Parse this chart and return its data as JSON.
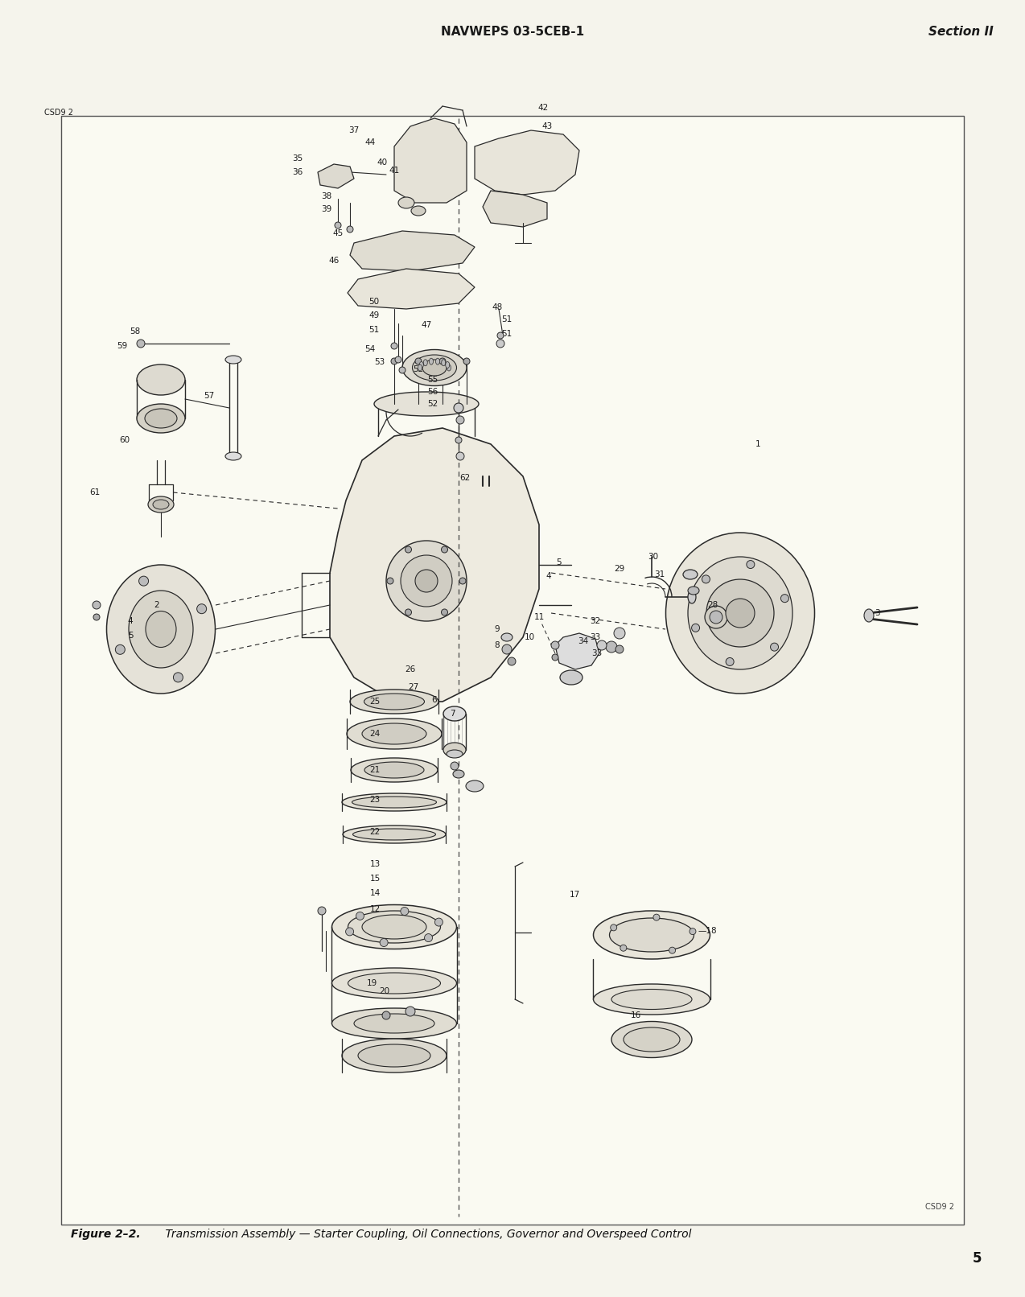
{
  "page_bg_color": "#F5F4EC",
  "border_bg": "#FAFAF2",
  "header_left": "NAVWEPS 03-5CEB-1",
  "header_right": "Section II",
  "figure_caption_bold": "Figure 2–2.",
  "figure_caption_italic": "    Transmission Assembly — Starter Coupling, Oil Connections, Governor and Overspeed Control",
  "page_number": "5",
  "diagram_label": "CSD9 2",
  "line_color": "#2a2a2a",
  "label_color": "#1a1a1a"
}
